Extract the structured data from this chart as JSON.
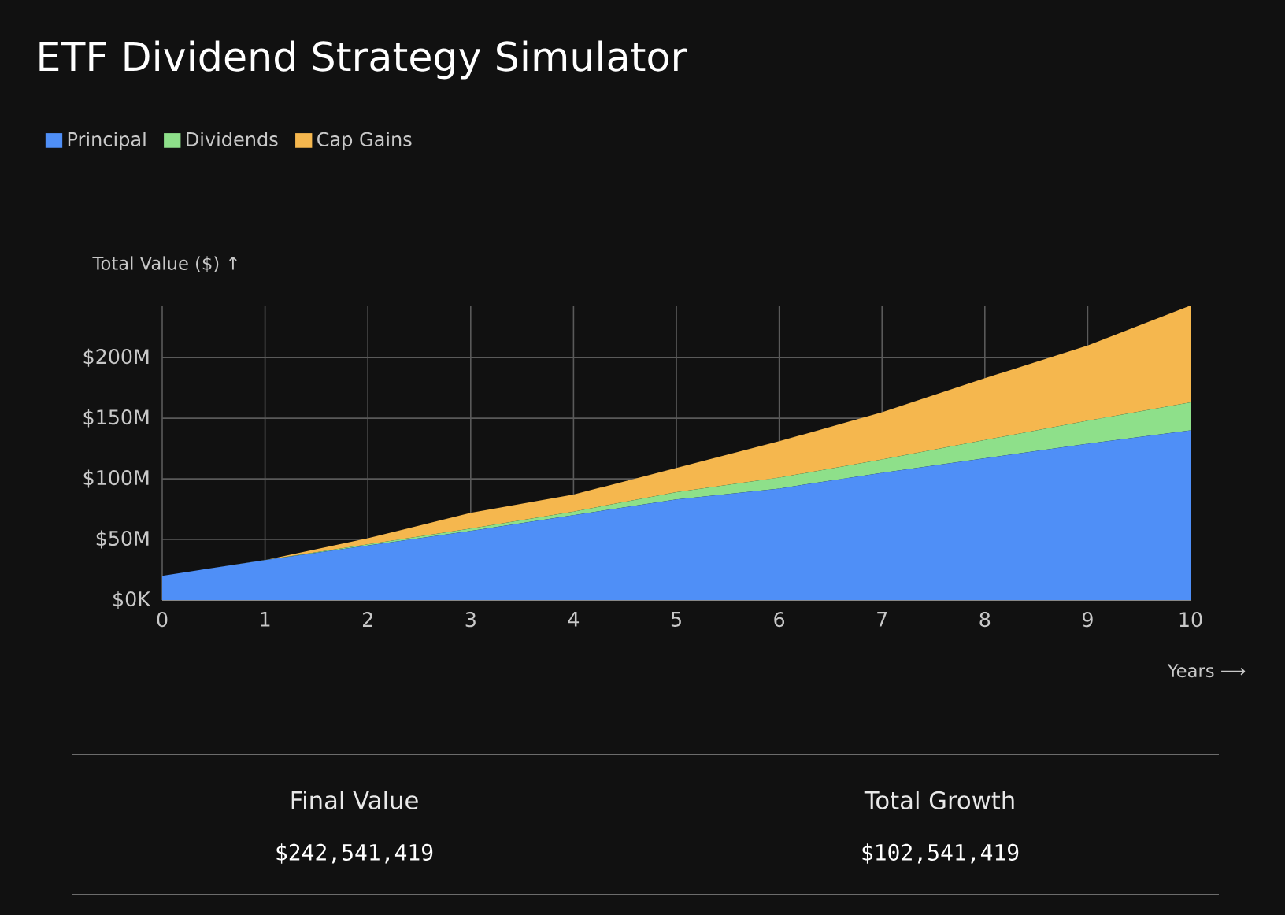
{
  "chart_data": {
    "type": "area",
    "title": "ETF Dividend Strategy Simulator",
    "xlabel": "Years ⟶",
    "ylabel": "Total Value ($) ↑",
    "x": [
      0,
      1,
      2,
      3,
      4,
      5,
      6,
      7,
      8,
      9,
      10
    ],
    "stacked": true,
    "series": [
      {
        "name": "Principal",
        "color": "#4f8ff7",
        "values": [
          20,
          33,
          45,
          57,
          70,
          83,
          92,
          105,
          117,
          129,
          140
        ]
      },
      {
        "name": "Dividends",
        "color": "#8ee08a",
        "values": [
          0,
          0,
          1,
          2,
          3,
          6,
          9,
          11,
          15,
          19,
          23
        ]
      },
      {
        "name": "Cap Gains",
        "color": "#f5b74e",
        "values": [
          0,
          0,
          5,
          13,
          14,
          20,
          30,
          39,
          51,
          62,
          80
        ]
      }
    ],
    "xlim": [
      0,
      10
    ],
    "ylim": [
      0,
      243
    ],
    "xticks": [
      0,
      1,
      2,
      3,
      4,
      5,
      6,
      7,
      8,
      9,
      10
    ],
    "yticks": [
      {
        "value": 0,
        "label": "$0K"
      },
      {
        "value": 50,
        "label": "$50M"
      },
      {
        "value": 100,
        "label": "$100M"
      },
      {
        "value": 150,
        "label": "$150M"
      },
      {
        "value": 200,
        "label": "$200M"
      }
    ],
    "grid": true,
    "legend": "top left",
    "annotations": [
      "Final Value",
      "$242,541,419",
      "Total Growth",
      "$102,541,419"
    ]
  }
}
